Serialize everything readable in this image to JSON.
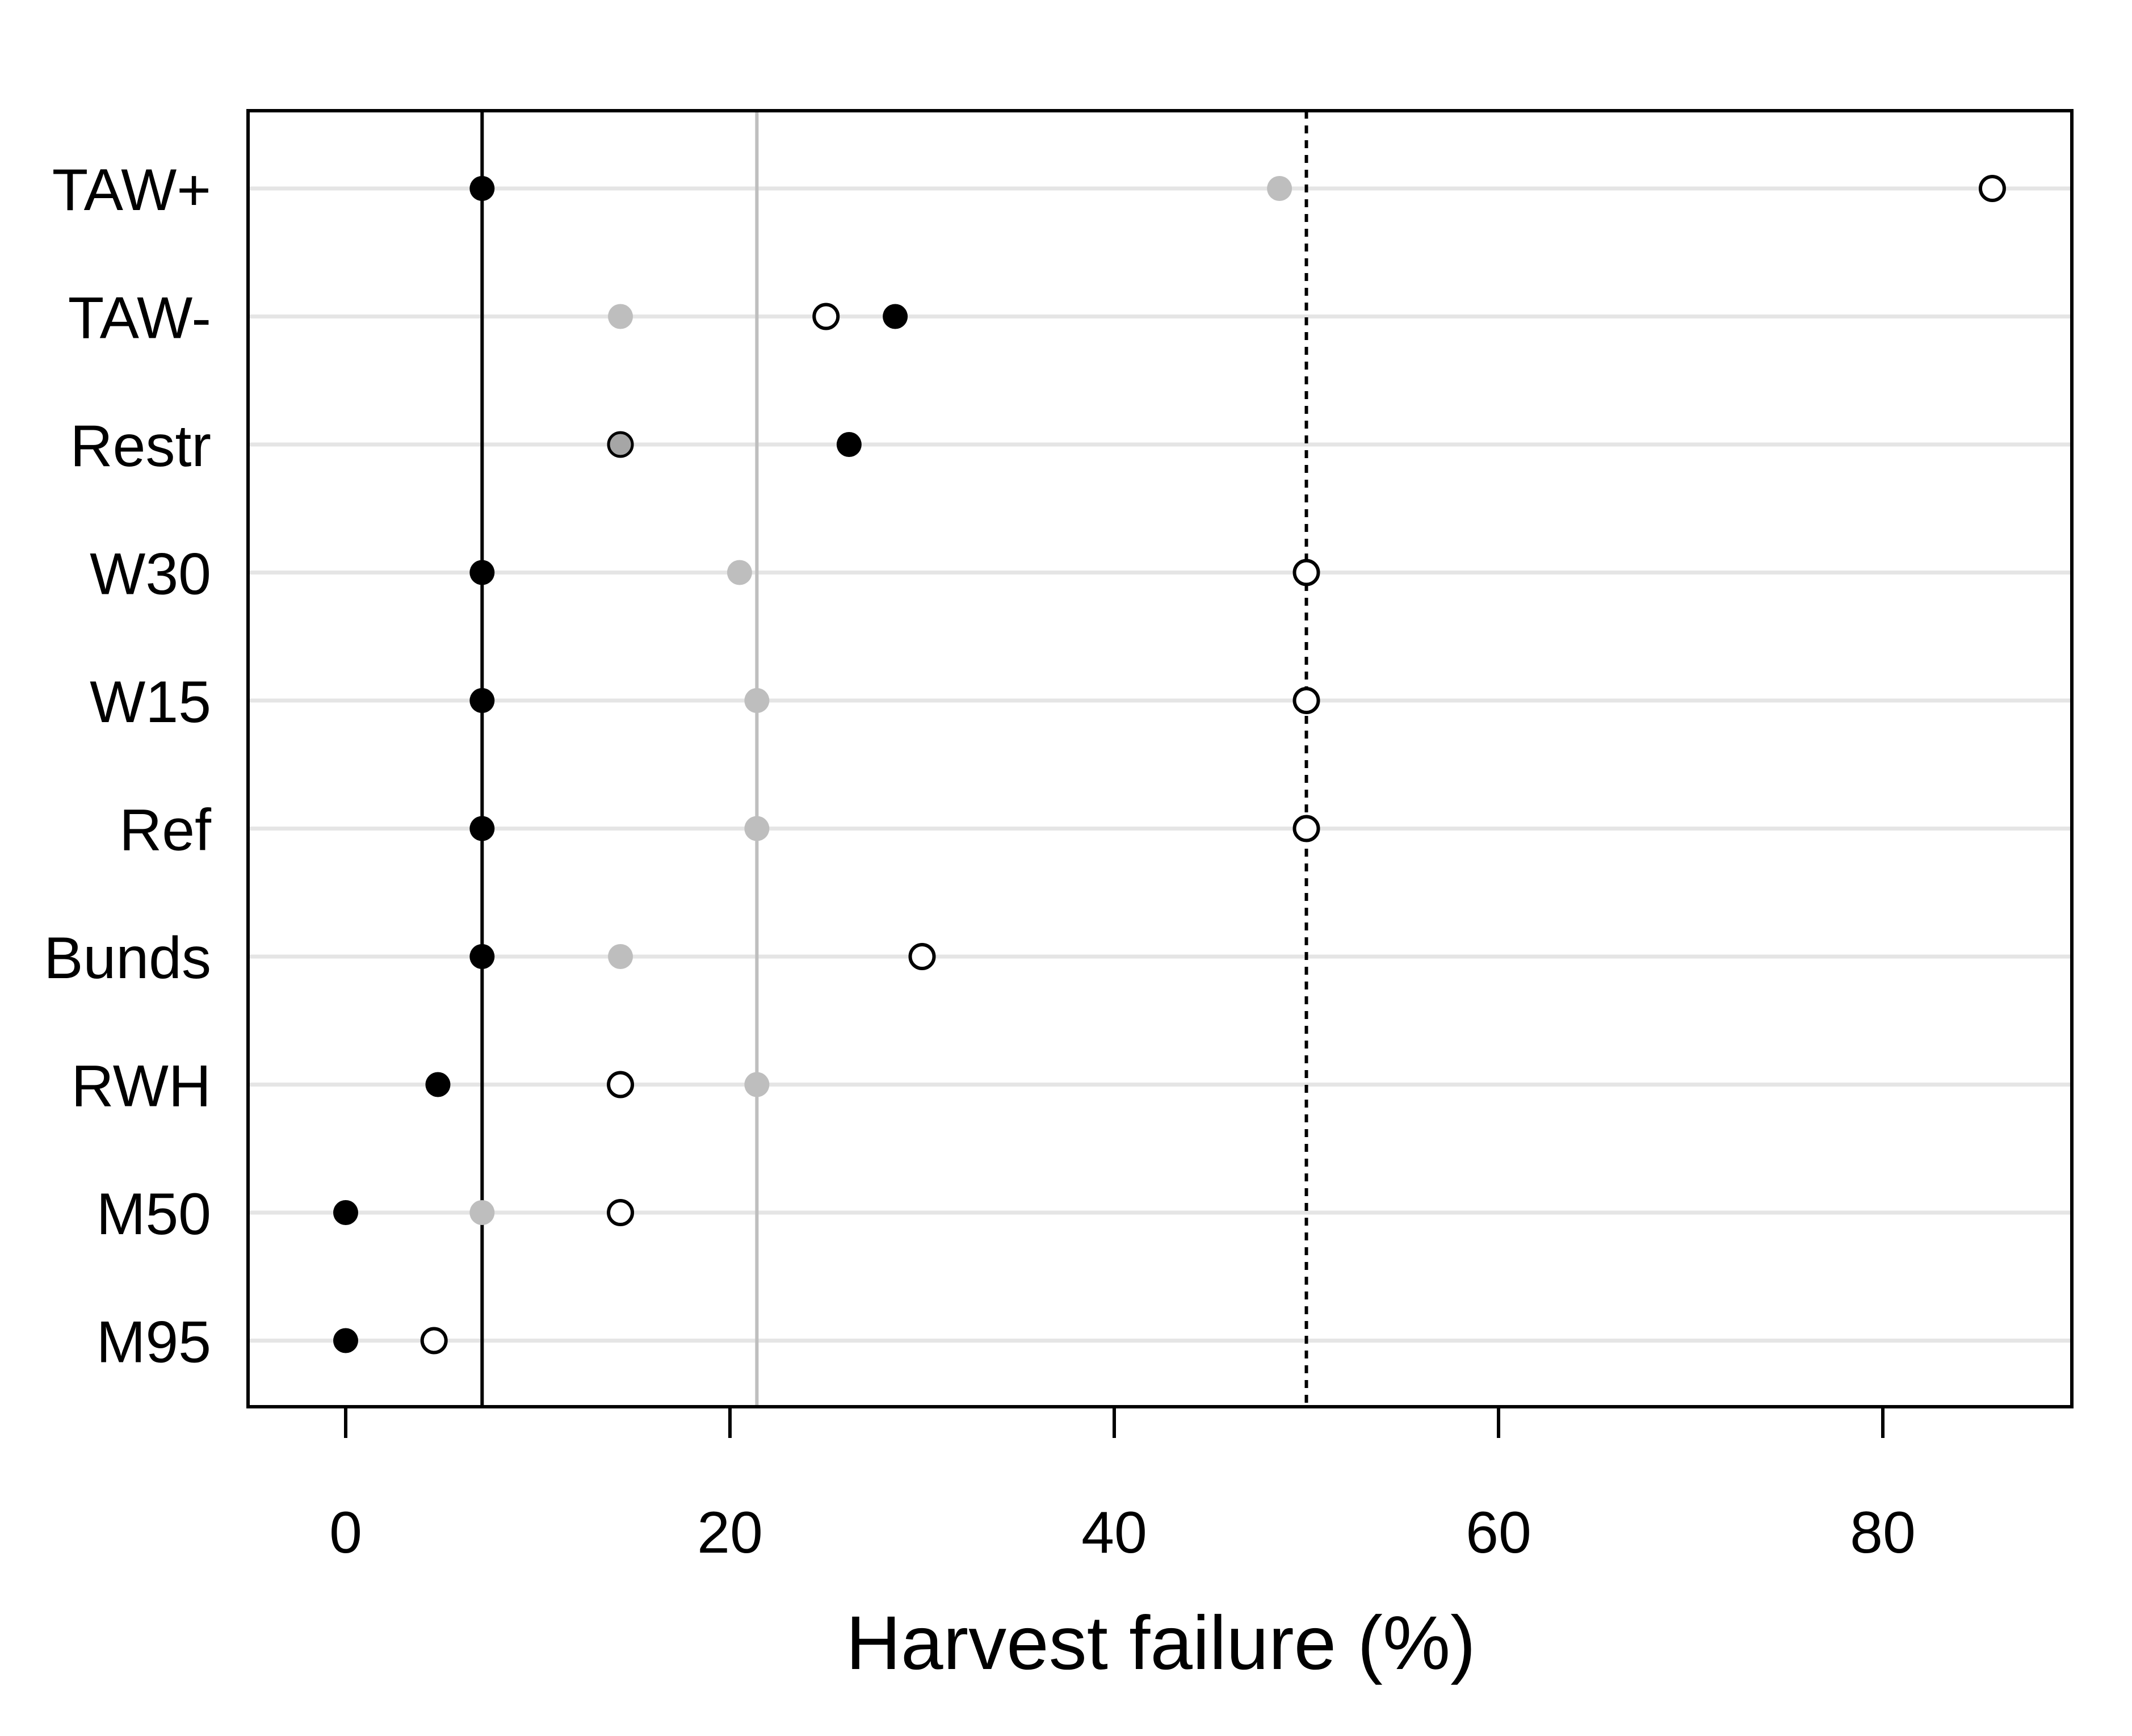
{
  "chart_data": {
    "type": "scatter",
    "title": "",
    "xlabel": "Harvest failure (%)",
    "ylabel": "",
    "xlim": [
      -5,
      90
    ],
    "x_ticks": [
      "0",
      "20",
      "40",
      "60",
      "80"
    ],
    "grid": "horizontal lines at each category",
    "legend": "none",
    "categories": [
      "TAW+",
      "TAW-",
      "Restr",
      "W30",
      "W15",
      "Ref",
      "Bunds",
      "RWH",
      "M50",
      "M95"
    ],
    "colors": {
      "black_series": "#000000",
      "gray_series": "#bebebe",
      "open_series": "#ffffff",
      "grid": "#e5e5e5"
    },
    "series": [
      {
        "marker": "filled-black-circle",
        "values": [
          7.1,
          28.6,
          26.2,
          7.1,
          7.1,
          7.1,
          7.1,
          4.8,
          0,
          0
        ]
      },
      {
        "marker": "filled-gray-circle",
        "values": [
          48.6,
          14.3,
          14.3,
          20.5,
          21.4,
          21.4,
          14.3,
          21.4,
          7.1,
          null
        ]
      },
      {
        "marker": "open-circle",
        "values": [
          85.7,
          25.0,
          null,
          50.0,
          50.0,
          50.0,
          30.0,
          14.3,
          14.3,
          4.6
        ]
      }
    ],
    "reference_lines": [
      {
        "style": "solid-black",
        "x": 7.1
      },
      {
        "style": "solid-gray",
        "x": 21.4
      },
      {
        "style": "dotted-black",
        "x": 50.0
      }
    ]
  }
}
